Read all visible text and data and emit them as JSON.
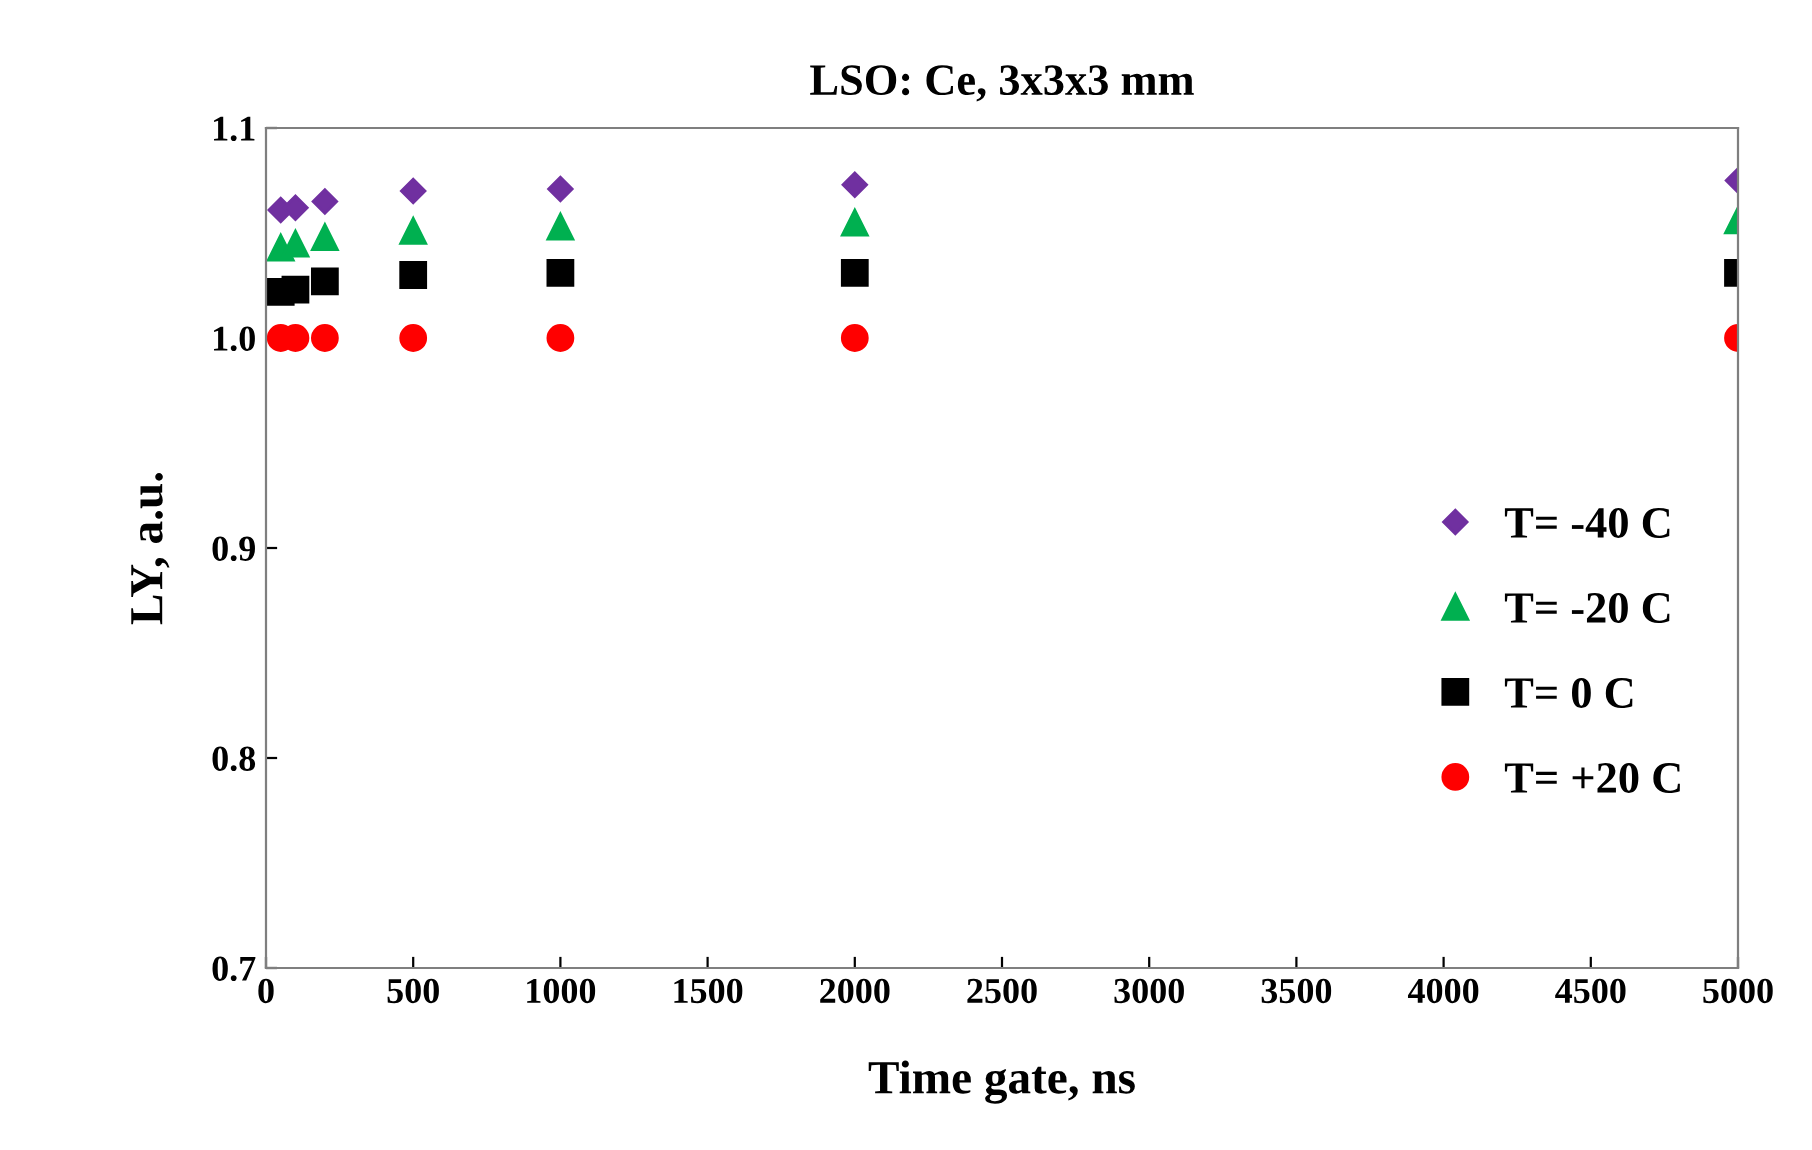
{
  "chart_data": {
    "type": "scatter",
    "title": "LSO: Ce, 3x3x3 mm",
    "xlabel": "Time gate, ns",
    "ylabel": "LY, a.u.",
    "x": [
      50,
      100,
      200,
      500,
      1000,
      2000,
      5000
    ],
    "series": [
      {
        "name": "T= -40 C",
        "color": "#7030a0",
        "marker": "diamond",
        "values": [
          1.061,
          1.062,
          1.065,
          1.07,
          1.071,
          1.073,
          1.075
        ]
      },
      {
        "name": "T= -20 C",
        "color": "#00b050",
        "marker": "triangle",
        "values": [
          1.043,
          1.045,
          1.048,
          1.051,
          1.053,
          1.055,
          1.056
        ]
      },
      {
        "name": "T= 0 C",
        "color": "#000000",
        "marker": "square",
        "values": [
          1.022,
          1.023,
          1.027,
          1.03,
          1.031,
          1.031,
          1.031
        ]
      },
      {
        "name": "T= +20 C",
        "color": "#ff0000",
        "marker": "circle",
        "values": [
          1.0,
          1.0,
          1.0,
          1.0,
          1.0,
          1.0,
          1.0
        ]
      }
    ],
    "xlim": [
      0,
      5000
    ],
    "xticks": [
      0,
      500,
      1000,
      1500,
      2000,
      2500,
      3000,
      3500,
      4000,
      4500,
      5000
    ],
    "ylim": [
      0.7,
      1.1
    ],
    "yticks": [
      {
        "value": 0.7,
        "label": "0.7"
      },
      {
        "value": 0.8,
        "label": "0.8"
      },
      {
        "value": 0.9,
        "label": "0.9"
      },
      {
        "value": 1.0,
        "label": "1.0"
      },
      {
        "value": 1.1,
        "label": "1.1"
      }
    ],
    "grid": false,
    "legend": "bottom right"
  }
}
